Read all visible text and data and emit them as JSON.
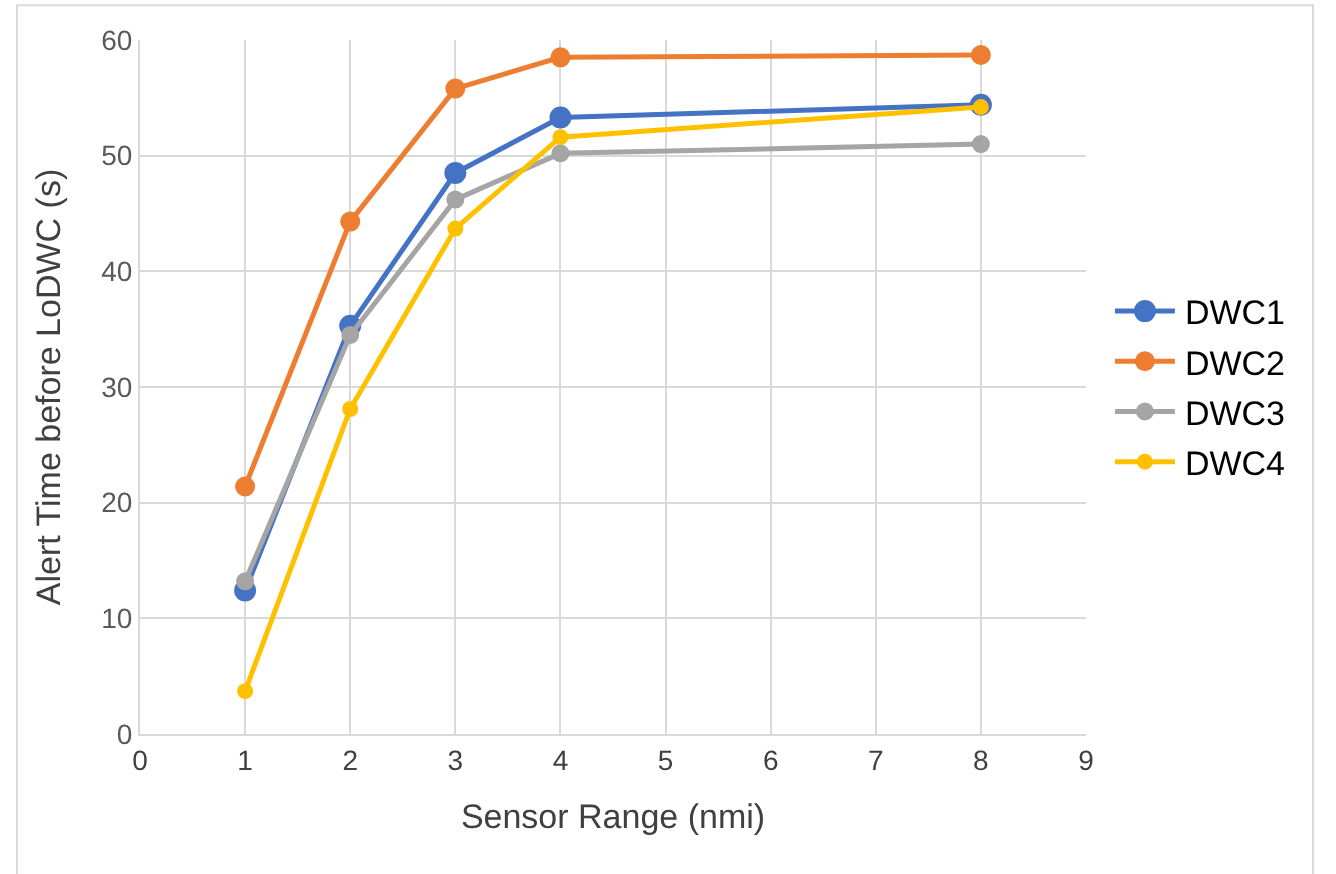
{
  "chart_data": {
    "type": "line",
    "xlabel": "Sensor Range (nmi)",
    "ylabel": "Alert Time before LoDWC (s)",
    "x": [
      1,
      2,
      3,
      4,
      8
    ],
    "series": [
      {
        "name": "DWC1",
        "color": "#4472c4",
        "values": [
          12.4,
          35.3,
          48.5,
          53.3,
          54.4
        ]
      },
      {
        "name": "DWC2",
        "color": "#ed7d31",
        "values": [
          21.4,
          44.3,
          55.8,
          58.5,
          58.7
        ]
      },
      {
        "name": "DWC3",
        "color": "#a5a5a5",
        "values": [
          13.2,
          34.5,
          46.2,
          50.2,
          51.0
        ]
      },
      {
        "name": "DWC4",
        "color": "#ffc000",
        "values": [
          3.7,
          28.1,
          43.7,
          51.6,
          54.2
        ]
      }
    ],
    "xlim": [
      0,
      9
    ],
    "xticks": [
      0,
      1,
      2,
      3,
      4,
      5,
      6,
      7,
      8,
      9
    ],
    "ylim": [
      0,
      60
    ],
    "yticks": [
      0,
      10,
      20,
      30,
      40,
      50,
      60
    ],
    "grid": true,
    "legend": "right",
    "marker": "circle",
    "line_style": "solid"
  }
}
